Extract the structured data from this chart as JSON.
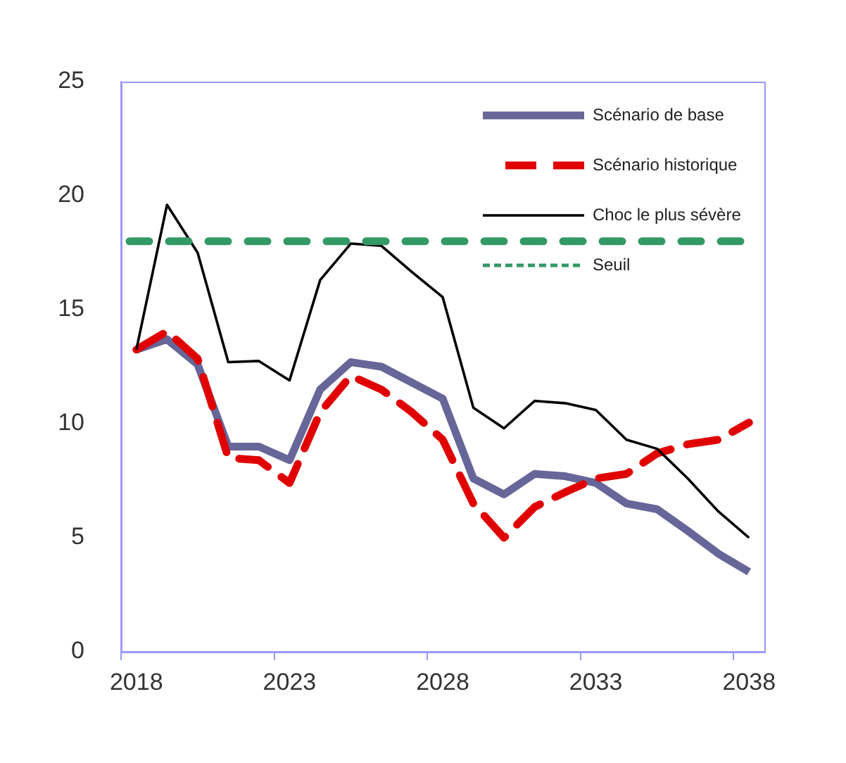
{
  "chart_data": {
    "type": "line",
    "categories": [
      "2018",
      null,
      null,
      null,
      null,
      "2023",
      null,
      null,
      null,
      null,
      "2028",
      null,
      null,
      null,
      null,
      "2033",
      null,
      null,
      null,
      null,
      "2038"
    ],
    "series": [
      {
        "name": "Scénario de base",
        "color": "#666699",
        "line_style": "solid",
        "values": [
          13.25,
          13.7,
          12.6,
          9.0,
          9.0,
          8.4,
          11.5,
          12.7,
          12.5,
          11.8,
          11.1,
          7.6,
          6.9,
          7.8,
          7.7,
          7.4,
          6.5,
          6.25,
          5.3,
          4.3,
          3.5
        ]
      },
      {
        "name": "Scénario historique",
        "color": "#e00000",
        "line_style": "dashed",
        "values": [
          13.25,
          14.05,
          12.85,
          8.5,
          8.4,
          7.4,
          10.5,
          12.1,
          11.5,
          10.5,
          9.3,
          6.5,
          5.0,
          6.35,
          7.0,
          7.6,
          7.8,
          8.7,
          9.1,
          9.3,
          10.05
        ]
      },
      {
        "name": "Choc le plus sévère",
        "color": "#000000",
        "line_style": "solid",
        "values": [
          13.25,
          19.6,
          17.5,
          12.7,
          12.75,
          11.9,
          16.3,
          17.9,
          17.8,
          16.65,
          15.55,
          10.7,
          9.8,
          11.0,
          10.9,
          10.6,
          9.3,
          8.9,
          7.6,
          6.15,
          5.0
        ]
      }
    ],
    "ref_lines": [
      {
        "axis": "y",
        "value": 18,
        "label": "Seuil",
        "color": "#339966",
        "line_style": "dashed"
      }
    ],
    "ylim": [
      0,
      25
    ],
    "yticks": [
      0,
      5,
      10,
      15,
      20,
      25
    ],
    "grid": false,
    "legend": "top right",
    "marker": "none"
  }
}
